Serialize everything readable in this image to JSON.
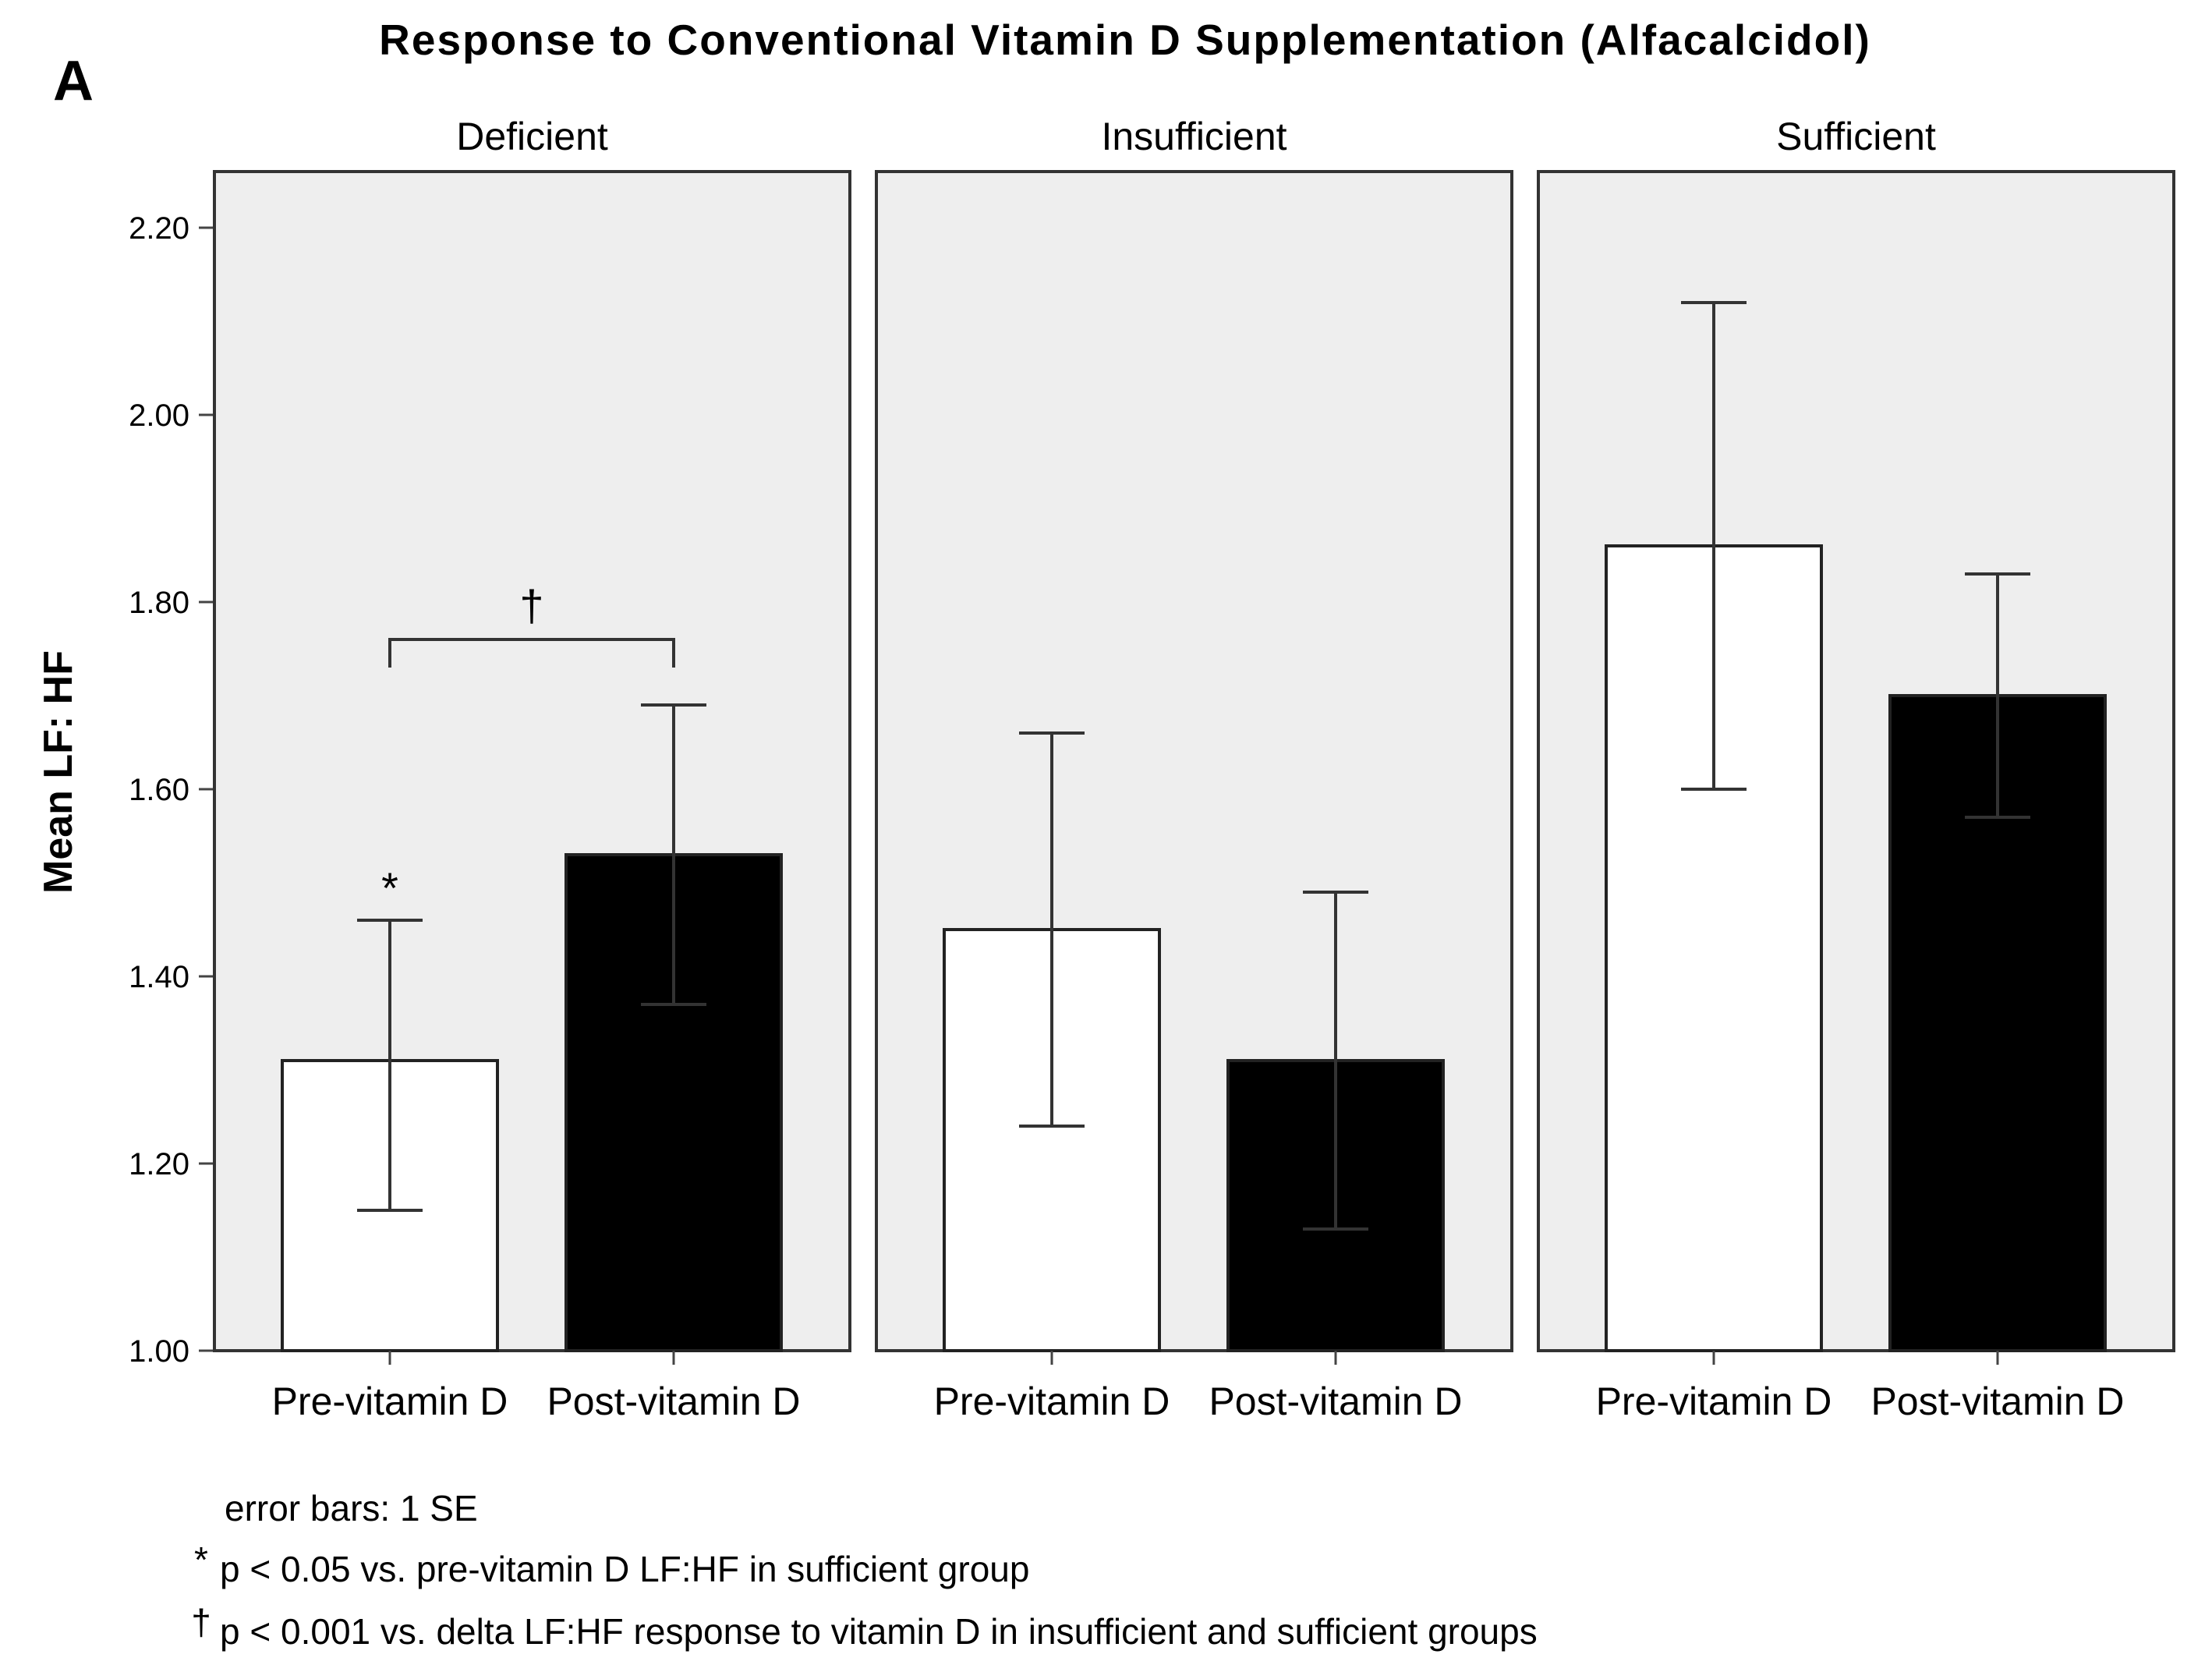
{
  "chart_data": {
    "type": "bar",
    "panel_letter": "A",
    "title": "Response to Conventional Vitamin D Supplementation (Alfacalcidol)",
    "ylabel": "Mean LF: HF",
    "ylim": [
      1.0,
      2.26
    ],
    "yticks": [
      "1.00",
      "1.20",
      "1.40",
      "1.60",
      "1.80",
      "2.00",
      "2.20"
    ],
    "categories": [
      "Pre-vitamin D",
      "Post-vitamin D"
    ],
    "series_colors": {
      "Pre-vitamin D": "#ffffff",
      "Post-vitamin D": "#000000"
    },
    "plot_background": "#eeeeee",
    "panels": [
      {
        "name": "Deficient",
        "bars": [
          {
            "category": "Pre-vitamin D",
            "value": 1.31,
            "se_low": 1.15,
            "se_high": 1.46
          },
          {
            "category": "Post-vitamin D",
            "value": 1.53,
            "se_low": 1.37,
            "se_high": 1.69
          }
        ],
        "annotations": [
          {
            "text": "*",
            "target": "Pre-vitamin D"
          },
          {
            "text": "†",
            "type": "bracket",
            "between": [
              "Pre-vitamin D",
              "Post-vitamin D"
            ],
            "at": 1.76
          }
        ]
      },
      {
        "name": "Insufficient",
        "bars": [
          {
            "category": "Pre-vitamin D",
            "value": 1.45,
            "se_low": 1.24,
            "se_high": 1.66
          },
          {
            "category": "Post-vitamin D",
            "value": 1.31,
            "se_low": 1.13,
            "se_high": 1.49
          }
        ],
        "annotations": []
      },
      {
        "name": "Sufficient",
        "bars": [
          {
            "category": "Pre-vitamin D",
            "value": 1.86,
            "se_low": 1.6,
            "se_high": 2.12
          },
          {
            "category": "Post-vitamin D",
            "value": 1.7,
            "se_low": 1.57,
            "se_high": 1.83
          }
        ],
        "annotations": []
      }
    ],
    "notes": [
      {
        "symbol": "",
        "text": "error bars: 1 SE"
      },
      {
        "symbol": "*",
        "text": "p < 0.05 vs. pre-vitamin D LF:HF in sufficient group"
      },
      {
        "symbol": "†",
        "text": "p < 0.001 vs. delta LF:HF response to vitamin D in insufficient and sufficient groups"
      }
    ]
  }
}
